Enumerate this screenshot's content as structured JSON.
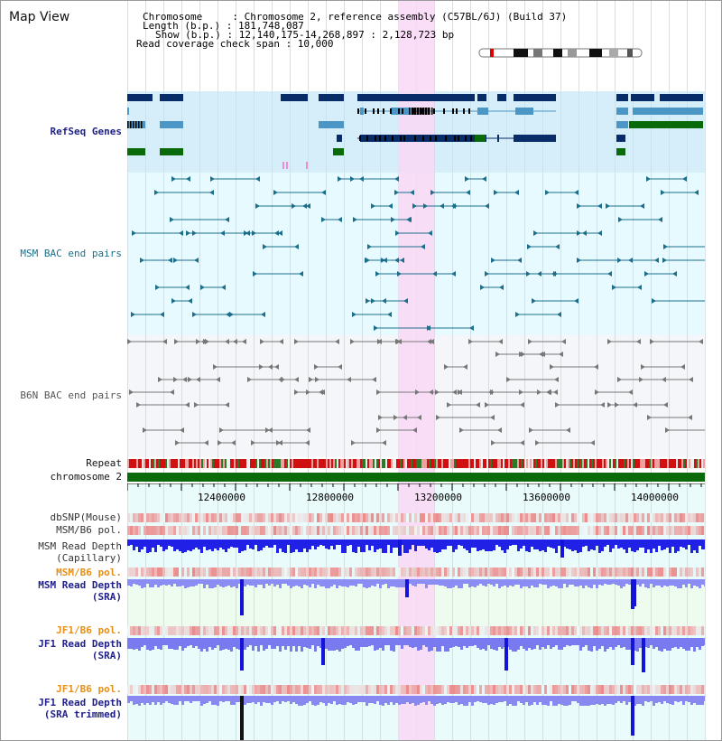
{
  "map_title": "Map View",
  "info": {
    "lines": [
      "Chromosome     : Chromosome 2, reference assembly (C57BL/6J) (Build 37)",
      "Length (b.p.) : 181,748,087",
      "Show (b.p.) : 12,140,175-14,268,897 : 2,128,723 bp",
      "Read coverage check span : 10,000"
    ]
  },
  "tracks": {
    "refseq": "RefSeq Genes",
    "msm_bac": "MSM BAC end pairs",
    "b6n_bac": "B6N BAC end pairs",
    "repeat": "Repeat",
    "chromosome": "chromosome 2",
    "dbsnp": "dbSNP(Mouse)",
    "msm_b6_pol_1": "MSM/B6 pol.",
    "msm_depth_cap_1": "MSM Read Depth",
    "msm_depth_cap_2": "(Capillary)",
    "msm_b6_pol_2": "MSM/B6 pol.",
    "msm_depth_sra_1": "MSM Read Depth",
    "msm_depth_sra_2": "(SRA)",
    "jf1_b6_pol_1": "JF1/B6 pol.",
    "jf1_depth_sra_1": "JF1 Read Depth",
    "jf1_depth_sra_2": "(SRA)",
    "jf1_b6_pol_2": "JF1/B6 pol.",
    "jf1_depth_trim_1": "JF1 Read Depth",
    "jf1_depth_trim_2": "(SRA trimmed)"
  },
  "axis": {
    "ticks": [
      "12400000",
      "12800000",
      "13200000",
      "13600000",
      "14000000"
    ]
  },
  "colors": {
    "refseq_bg": "#d6eefa",
    "msm_bg": "#e6faff",
    "b6n_bg": "#f3f5f8",
    "highlight": "#f9d7f4",
    "gene_dark": "#082c68",
    "gene_mid": "#4a96c4",
    "gene_green": "#0a6a0a",
    "bac_msm": "#1c6f8a",
    "bac_b6n": "#777777",
    "chromosome": "#0b6b0b",
    "depth_blue": "#2020e6",
    "depth_light": "#8888f4",
    "label_navy": "#1f1f8a",
    "label_orange": "#e6901a",
    "label_teal": "#1a6f8a"
  }
}
